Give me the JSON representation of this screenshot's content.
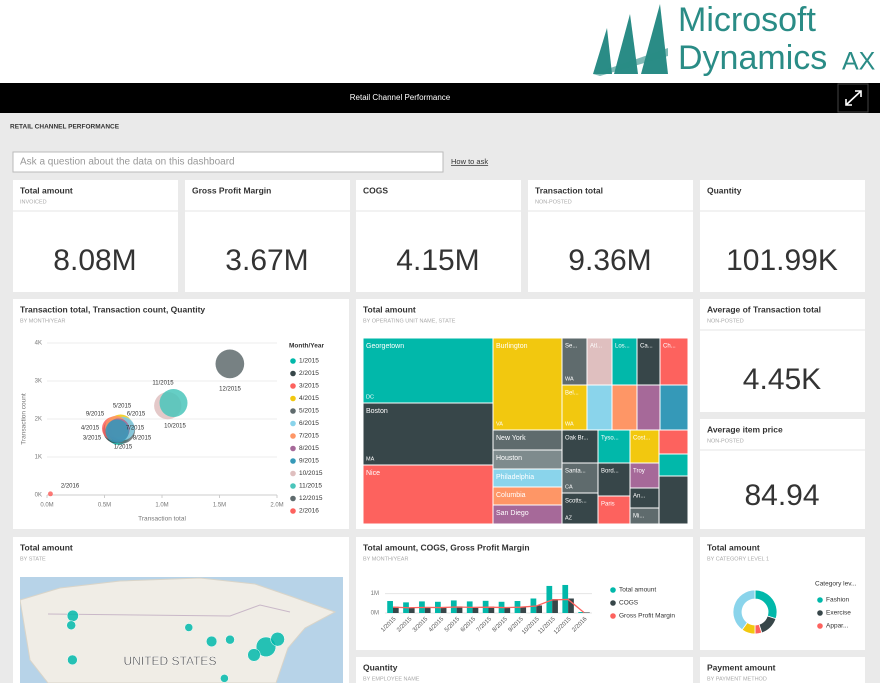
{
  "logo": {
    "line1": "Microsoft",
    "line2": "Dynamics",
    "suffix": "AX"
  },
  "header": {
    "title": "Retail Channel Performance"
  },
  "dashboard": {
    "title": "RETAIL CHANNEL PERFORMANCE",
    "search_placeholder": "Ask a question about the data on this dashboard",
    "help_link": "How to ask"
  },
  "kpis": [
    {
      "title": "Total amount",
      "subtitle": "INVOICED",
      "value": "8.08M"
    },
    {
      "title": "Gross Profit Margin",
      "value": "3.67M"
    },
    {
      "title": "COGS",
      "value": "4.15M"
    },
    {
      "title": "Transaction total",
      "subtitle": "NON-POSTED",
      "value": "9.36M"
    },
    {
      "title": "Quantity",
      "value": "101.99K"
    }
  ],
  "side_kpis": [
    {
      "title": "Average of Transaction total",
      "subtitle": "NON-POSTED",
      "value": "4.45K"
    },
    {
      "title": "Average item price",
      "subtitle": "NON-POSTED",
      "value": "84.94"
    }
  ],
  "bubble_chart": {
    "type": "scatter",
    "title": "Transaction total, Transaction count, Quantity",
    "subtitle": "BY MONTH/YEAR",
    "x_label": "Transaction total",
    "y_label": "Transaction count",
    "legend_title": "Month/Year",
    "xlim": [
      0,
      2000000
    ],
    "xticks": [
      {
        "value": 0,
        "label": "0.0M"
      },
      {
        "value": 500000,
        "label": "0.5M"
      },
      {
        "value": 1000000,
        "label": "1.0M"
      },
      {
        "value": 1500000,
        "label": "1.5M"
      },
      {
        "value": 2000000,
        "label": "2.0M"
      }
    ],
    "ylim": [
      0,
      4000
    ],
    "yticks": [
      {
        "value": 0,
        "label": "0K"
      },
      {
        "value": 1000,
        "label": "1K"
      },
      {
        "value": 2000,
        "label": "2K"
      },
      {
        "value": 3000,
        "label": "3K"
      },
      {
        "value": 4000,
        "label": "4K"
      }
    ],
    "grid": true,
    "series": [
      {
        "name": "1/2015",
        "color": "#01b8aa",
        "x": [
          620000
        ],
        "values": [
          1650
        ],
        "sizes": [
          8000
        ]
      },
      {
        "name": "2/2015",
        "color": "#374649",
        "x": [
          600000
        ],
        "values": [
          1700
        ],
        "sizes": [
          8500
        ]
      },
      {
        "name": "3/2015",
        "color": "#fd625e",
        "x": [
          580000
        ],
        "values": [
          1750
        ],
        "sizes": [
          7000
        ]
      },
      {
        "name": "4/2015",
        "color": "#f2c80f",
        "x": [
          640000
        ],
        "values": [
          1800
        ],
        "sizes": [
          7500
        ]
      },
      {
        "name": "5/2015",
        "color": "#5f6b6d",
        "x": [
          650000
        ],
        "values": [
          1700
        ],
        "sizes": [
          9000
        ]
      },
      {
        "name": "6/2015",
        "color": "#8ad4eb",
        "x": [
          660000
        ],
        "values": [
          1750
        ],
        "sizes": [
          7000
        ]
      },
      {
        "name": "7/2015",
        "color": "#fe9666",
        "x": [
          600000
        ],
        "values": [
          1800
        ],
        "sizes": [
          6000
        ]
      },
      {
        "name": "8/2015",
        "color": "#a66999",
        "x": [
          620000
        ],
        "values": [
          1720
        ],
        "sizes": [
          6500
        ]
      },
      {
        "name": "9/2015",
        "color": "#3599b8",
        "x": [
          610000
        ],
        "values": [
          1680
        ],
        "sizes": [
          7000
        ]
      },
      {
        "name": "10/2015",
        "color": "#dfbfbf",
        "x": [
          1050000
        ],
        "values": [
          2350
        ],
        "sizes": [
          9500
        ]
      },
      {
        "name": "11/2015",
        "color": "#4ac5bb",
        "x": [
          1100000
        ],
        "values": [
          2420
        ],
        "sizes": [
          10000
        ]
      },
      {
        "name": "12/2015",
        "color": "#5f6b6d",
        "x": [
          1590000
        ],
        "values": [
          3450
        ],
        "sizes": [
          10500
        ]
      },
      {
        "name": "2/2016",
        "color": "#fd625e",
        "x": [
          30000
        ],
        "values": [
          30
        ],
        "sizes": [
          300
        ]
      }
    ]
  },
  "treemap": {
    "type": "treemap",
    "title": "Total amount",
    "subtitle": "BY OPERATING UNIT NAME, STATE",
    "items": [
      {
        "label": "Georgetown",
        "sublabel": "DC",
        "color": "#01b8aa",
        "value": 845
      },
      {
        "label": "Boston",
        "sublabel": "MA",
        "color": "#374649",
        "value": 806
      },
      {
        "label": "Nice",
        "color": "#fd625e",
        "value": 767
      },
      {
        "label": "Burlington",
        "sublabel": "VA",
        "color": "#f2c80f",
        "value": 635
      },
      {
        "label": "New York",
        "color": "#5f6b6d",
        "value": 138
      },
      {
        "label": "Houston",
        "color": "#7e8b8d",
        "value": 131
      },
      {
        "label": "Philadelphia",
        "color": "#8ad4eb",
        "value": 124
      },
      {
        "label": "Columbia",
        "color": "#fe9666",
        "value": 124
      },
      {
        "label": "San Diego",
        "color": "#a66999",
        "value": 131
      },
      {
        "label": "Se...",
        "sublabel": "WA",
        "color": "#5f6b6d",
        "value": 118
      },
      {
        "label": "Atl...",
        "color": "#dfbfbf",
        "value": 118
      },
      {
        "label": "Los...",
        "color": "#01b8aa",
        "value": 118
      },
      {
        "label": "Ca...",
        "color": "#374649",
        "value": 108
      },
      {
        "label": "Ch...",
        "color": "#fd625e",
        "value": 132
      },
      {
        "label": "Bel...",
        "sublabel": "WA",
        "color": "#f2c80f",
        "value": 113
      },
      {
        "label": null,
        "color": "#8ad4eb",
        "value": 113
      },
      {
        "label": null,
        "color": "#fe9666",
        "value": 113
      },
      {
        "label": null,
        "color": "#a66999",
        "value": 104
      },
      {
        "label": null,
        "color": "#3599b8",
        "value": 126
      },
      {
        "label": "Oak Br...",
        "color": "#374649",
        "value": 119
      },
      {
        "label": "Santa...",
        "sublabel": "CA",
        "color": "#5f6b6d",
        "value": 108
      },
      {
        "label": "Scotts...",
        "sublabel": "AZ",
        "color": "#374649",
        "value": 112
      },
      {
        "label": "Tyso...",
        "color": "#01b8aa",
        "value": 106
      },
      {
        "label": "Bord...",
        "color": "#374649",
        "value": 106
      },
      {
        "label": "Paris",
        "color": "#fd625e",
        "value": 90
      },
      {
        "label": "Cost...",
        "color": "#f2c80f",
        "value": 96
      },
      {
        "label": "Troy",
        "color": "#a66999",
        "value": 73
      },
      {
        "label": "An...",
        "color": "#374649",
        "value": 58
      },
      {
        "label": "Mi...",
        "color": "#5f6b6d",
        "value": 46
      },
      {
        "label": null,
        "color": "#fd625e",
        "value": 70
      },
      {
        "label": null,
        "color": "#01b8aa",
        "value": 64
      },
      {
        "label": null,
        "color": "#374649",
        "value": 139
      }
    ]
  },
  "map": {
    "type": "map",
    "title": "Total amount",
    "subtitle": "BY STATE",
    "country_label": "UNITED STATES",
    "color": "#01b8aa",
    "points": [
      {
        "lat": 47.6,
        "lon": -122.3,
        "value": 40
      },
      {
        "lat": 45.5,
        "lon": -122.7,
        "value": 25
      },
      {
        "lat": 37.8,
        "lon": -122.4,
        "value": 30
      },
      {
        "lat": 45.0,
        "lon": -93.3,
        "value": 20
      },
      {
        "lat": 41.9,
        "lon": -87.6,
        "value": 35
      },
      {
        "lat": 42.3,
        "lon": -83.0,
        "value": 25
      },
      {
        "lat": 40.7,
        "lon": -74.0,
        "value": 120
      },
      {
        "lat": 42.4,
        "lon": -71.1,
        "value": 60
      },
      {
        "lat": 38.9,
        "lon": -77.0,
        "value": 50
      },
      {
        "lat": 33.7,
        "lon": -84.4,
        "value": 20
      }
    ]
  },
  "combo_chart": {
    "type": "combo",
    "title": "Total amount, COGS, Gross Profit Margin",
    "subtitle": "BY MONTH/YEAR",
    "categories": [
      "1/2015",
      "2/2015",
      "3/2015",
      "4/2015",
      "5/2015",
      "6/2015",
      "7/2015",
      "8/2015",
      "9/2015",
      "10/2015",
      "11/2015",
      "12/2015",
      "2/2016"
    ],
    "ylim": [
      0,
      1.5
    ],
    "yticks": [
      {
        "value": 0,
        "label": "0M"
      },
      {
        "value": 1,
        "label": "1M"
      }
    ],
    "grid": true,
    "series": [
      {
        "name": "Total amount",
        "kind": "bar",
        "color": "#01b8aa",
        "values": [
          0.62,
          0.55,
          0.6,
          0.58,
          0.65,
          0.6,
          0.63,
          0.58,
          0.62,
          0.75,
          1.4,
          1.45,
          0.05
        ]
      },
      {
        "name": "COGS",
        "kind": "bar",
        "color": "#374649",
        "values": [
          0.32,
          0.28,
          0.31,
          0.3,
          0.34,
          0.31,
          0.33,
          0.3,
          0.32,
          0.39,
          0.72,
          0.75,
          0.03
        ]
      },
      {
        "name": "Gross Profit Margin",
        "kind": "line",
        "color": "#fd625e",
        "values": [
          0.3,
          0.27,
          0.29,
          0.28,
          0.31,
          0.29,
          0.3,
          0.28,
          0.3,
          0.36,
          0.68,
          0.7,
          0.02
        ]
      }
    ]
  },
  "donut_chart": {
    "type": "donut",
    "title": "Total amount",
    "subtitle": "BY CATEGORY LEVEL 1",
    "legend_title": "Category lev...",
    "categories": [
      "Fashion",
      "Exercise",
      "Appar...",
      null,
      null
    ],
    "values": [
      30,
      15,
      5,
      10,
      40
    ],
    "colors": [
      "#01b8aa",
      "#374649",
      "#fd625e",
      "#f2c80f",
      "#8ad4eb"
    ]
  },
  "bottom_tiles": [
    {
      "title": "Quantity",
      "subtitle": "BY EMPLOYEE NAME"
    },
    {
      "title": "Payment amount",
      "subtitle": "BY PAYMENT METHOD"
    }
  ]
}
